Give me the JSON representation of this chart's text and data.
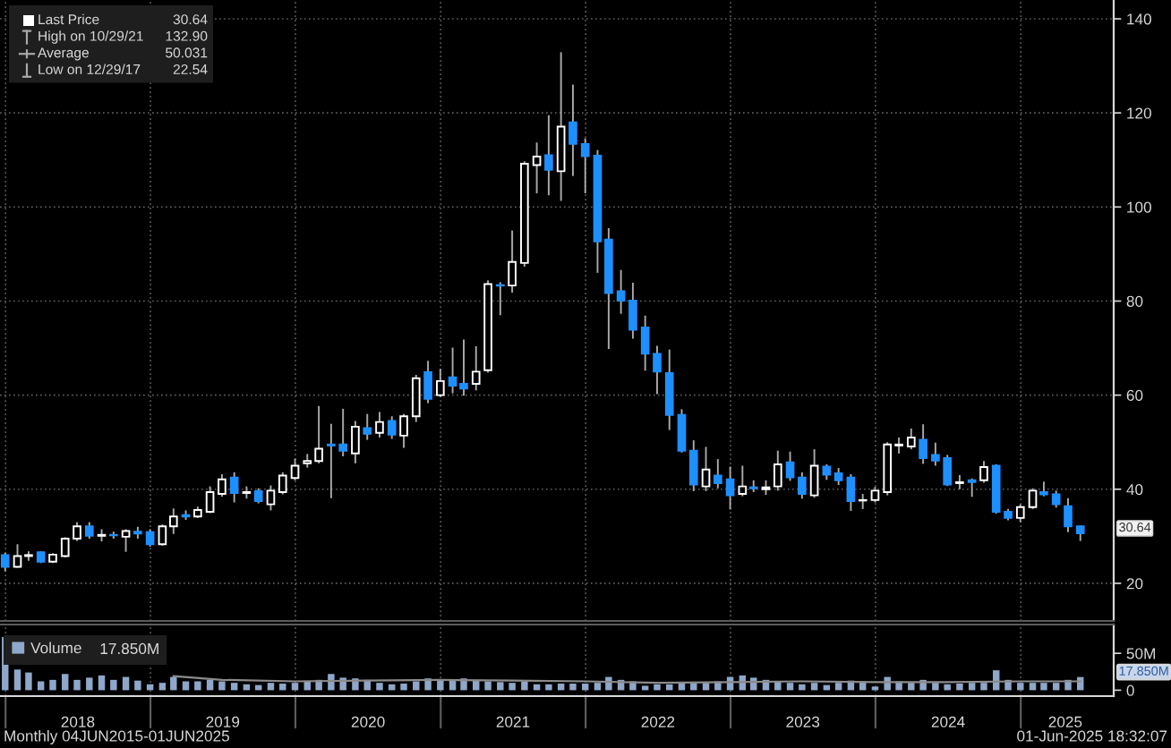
{
  "chart_data": [
    {
      "type": "candlestick",
      "x": [
        "2017-12-31",
        "2018-01-31",
        "2018-02-28",
        "2018-03-31",
        "2018-04-30",
        "2018-05-31",
        "2018-06-30",
        "2018-07-31",
        "2018-08-31",
        "2018-09-30",
        "2018-10-31",
        "2018-11-30",
        "2018-12-31",
        "2019-01-31",
        "2019-02-28",
        "2019-03-31",
        "2019-04-30",
        "2019-05-31",
        "2019-06-30",
        "2019-07-31",
        "2019-08-31",
        "2019-09-30",
        "2019-10-31",
        "2019-11-30",
        "2019-12-31",
        "2020-01-31",
        "2020-02-29",
        "2020-03-31",
        "2020-04-30",
        "2020-05-31",
        "2020-06-30",
        "2020-07-31",
        "2020-08-31",
        "2020-09-30",
        "2020-10-31",
        "2020-11-30",
        "2020-12-31",
        "2021-01-31",
        "2021-02-28",
        "2021-03-31",
        "2021-04-30",
        "2021-05-31",
        "2021-06-30",
        "2021-07-31",
        "2021-08-31",
        "2021-09-30",
        "2021-10-31",
        "2021-11-30",
        "2021-12-31",
        "2022-01-31",
        "2022-02-28",
        "2022-03-31",
        "2022-04-30",
        "2022-05-31",
        "2022-06-30",
        "2022-07-31",
        "2022-08-31",
        "2022-09-30",
        "2022-10-31",
        "2022-11-30",
        "2022-12-31",
        "2023-01-31",
        "2023-02-28",
        "2023-03-31",
        "2023-04-30",
        "2023-05-31",
        "2023-06-30",
        "2023-07-31",
        "2023-08-31",
        "2023-09-30",
        "2023-10-31",
        "2023-11-30",
        "2023-12-31",
        "2024-01-31",
        "2024-02-29",
        "2024-03-31",
        "2024-04-30",
        "2024-05-31",
        "2024-06-30",
        "2024-07-31",
        "2024-08-31",
        "2024-09-30",
        "2024-10-31",
        "2024-11-30",
        "2024-12-31",
        "2025-01-31",
        "2025-02-28",
        "2025-03-31",
        "2025-04-30",
        "2025-05-31"
      ],
      "ohlc": [
        [
          26.0,
          26.5,
          22.54,
          23.5
        ],
        [
          23.5,
          28.3,
          23.3,
          25.8
        ],
        [
          25.8,
          26.8,
          24.8,
          26.0
        ],
        [
          26.6,
          26.8,
          24.3,
          24.6
        ],
        [
          24.6,
          26.4,
          24.3,
          26.1
        ],
        [
          25.8,
          29.8,
          25.5,
          29.5
        ],
        [
          29.5,
          33.0,
          29.0,
          32.1
        ],
        [
          32.1,
          33.0,
          29.5,
          30.1
        ],
        [
          30.1,
          31.5,
          28.9,
          30.3
        ],
        [
          30.3,
          31.0,
          29.5,
          30.2
        ],
        [
          29.9,
          31.5,
          26.7,
          31.1
        ],
        [
          31.0,
          32.0,
          29.5,
          30.6
        ],
        [
          30.9,
          31.5,
          27.8,
          28.3
        ],
        [
          28.3,
          32.5,
          28.0,
          32.1
        ],
        [
          32.1,
          35.9,
          30.5,
          34.2
        ],
        [
          34.5,
          35.5,
          33.5,
          34.2
        ],
        [
          34.2,
          36.3,
          33.9,
          35.6
        ],
        [
          35.2,
          40.6,
          34.9,
          39.4
        ],
        [
          39.0,
          43.2,
          38.4,
          42.1
        ],
        [
          42.5,
          43.6,
          37.2,
          39.2
        ],
        [
          39.2,
          40.6,
          38.0,
          39.4
        ],
        [
          39.6,
          40.2,
          37.0,
          37.5
        ],
        [
          36.8,
          40.8,
          35.5,
          39.7
        ],
        [
          39.4,
          43.6,
          38.9,
          42.9
        ],
        [
          42.4,
          46.5,
          41.9,
          45.0
        ],
        [
          45.5,
          47.5,
          44.6,
          46.0
        ],
        [
          46.0,
          57.7,
          45.5,
          48.6
        ],
        [
          49.5,
          53.9,
          38.1,
          49.3
        ],
        [
          49.5,
          57.1,
          47.0,
          48.2
        ],
        [
          47.6,
          54.5,
          45.5,
          53.3
        ],
        [
          53.0,
          56.0,
          50.5,
          51.8
        ],
        [
          52.0,
          56.4,
          51.0,
          54.3
        ],
        [
          54.5,
          55.5,
          50.7,
          51.6
        ],
        [
          51.4,
          56.0,
          48.8,
          55.5
        ],
        [
          55.5,
          64.3,
          54.3,
          63.6
        ],
        [
          64.9,
          67.3,
          58.3,
          59.2
        ],
        [
          60.0,
          65.6,
          59.6,
          63.0
        ],
        [
          63.8,
          70.1,
          60.4,
          62.0
        ],
        [
          62.4,
          71.8,
          59.9,
          61.4
        ],
        [
          62.4,
          70.4,
          61.0,
          65.0
        ],
        [
          65.3,
          84.4,
          64.8,
          83.6
        ],
        [
          83.4,
          84.0,
          77.0,
          83.3
        ],
        [
          83.3,
          95.0,
          81.8,
          88.3
        ],
        [
          88.1,
          109.7,
          87.3,
          109.2
        ],
        [
          108.9,
          113.7,
          102.9,
          110.7
        ],
        [
          111.0,
          119.5,
          102.5,
          107.9
        ],
        [
          107.6,
          132.9,
          101.3,
          117.1
        ],
        [
          118.0,
          126.0,
          106.6,
          113.4
        ],
        [
          113.4,
          114.6,
          102.9,
          110.8
        ],
        [
          110.9,
          112.1,
          86.0,
          92.7
        ],
        [
          93.1,
          95.5,
          69.8,
          81.7
        ],
        [
          82.1,
          86.6,
          77.3,
          80.1
        ],
        [
          80.1,
          83.9,
          72.0,
          73.9
        ],
        [
          74.4,
          76.9,
          65.2,
          68.8
        ],
        [
          68.8,
          70.5,
          60.2,
          65.0
        ],
        [
          64.7,
          69.7,
          52.6,
          55.8
        ],
        [
          55.8,
          57.0,
          47.8,
          48.2
        ],
        [
          48.2,
          50.4,
          39.6,
          41.0
        ],
        [
          40.6,
          49.0,
          39.6,
          44.2
        ],
        [
          42.9,
          46.4,
          40.2,
          41.3
        ],
        [
          42.1,
          44.8,
          35.7,
          38.7
        ],
        [
          39.0,
          45.0,
          38.5,
          40.6
        ],
        [
          40.4,
          41.9,
          39.4,
          40.2
        ],
        [
          40.0,
          41.9,
          38.8,
          40.4
        ],
        [
          40.6,
          48.2,
          39.7,
          45.3
        ],
        [
          45.7,
          48.0,
          41.8,
          42.5
        ],
        [
          42.5,
          43.6,
          38.0,
          39.0
        ],
        [
          38.7,
          48.5,
          38.2,
          45.0
        ],
        [
          44.8,
          45.3,
          42.0,
          43.1
        ],
        [
          43.4,
          44.5,
          40.9,
          41.9
        ],
        [
          42.5,
          43.2,
          35.4,
          37.5
        ],
        [
          37.6,
          39.0,
          35.8,
          37.7
        ],
        [
          37.7,
          40.5,
          37.2,
          39.7
        ],
        [
          39.4,
          50.0,
          38.7,
          49.5
        ],
        [
          49.3,
          51.0,
          47.6,
          49.5
        ],
        [
          49.1,
          52.9,
          48.5,
          51.0
        ],
        [
          50.5,
          53.8,
          45.4,
          46.6
        ],
        [
          47.3,
          49.9,
          45.0,
          46.1
        ],
        [
          46.6,
          47.3,
          40.7,
          41.0
        ],
        [
          41.3,
          43.0,
          40.0,
          41.5
        ],
        [
          41.9,
          42.3,
          38.4,
          41.5
        ],
        [
          41.9,
          46.0,
          41.4,
          44.7
        ],
        [
          45.0,
          45.3,
          34.8,
          35.2
        ],
        [
          35.2,
          35.8,
          33.4,
          33.9
        ],
        [
          33.9,
          36.8,
          33.0,
          36.2
        ],
        [
          36.2,
          40.2,
          35.8,
          39.7
        ],
        [
          39.4,
          41.6,
          38.5,
          38.9
        ],
        [
          38.9,
          39.7,
          36.1,
          36.8
        ],
        [
          36.4,
          38.1,
          30.9,
          32.1
        ],
        [
          32.1,
          32.3,
          29.0,
          30.64
        ]
      ],
      "colors": [
        "#1e8fff",
        "#ffffff",
        "#ffffff",
        "#1e8fff",
        "#ffffff",
        "#ffffff",
        "#ffffff",
        "#1e8fff",
        "#ffffff",
        "#1e8fff",
        "#ffffff",
        "#1e8fff",
        "#1e8fff",
        "#ffffff",
        "#ffffff",
        "#1e8fff",
        "#ffffff",
        "#ffffff",
        "#ffffff",
        "#1e8fff",
        "#ffffff",
        "#1e8fff",
        "#ffffff",
        "#ffffff",
        "#ffffff",
        "#ffffff",
        "#ffffff",
        "#1e8fff",
        "#1e8fff",
        "#ffffff",
        "#1e8fff",
        "#ffffff",
        "#1e8fff",
        "#ffffff",
        "#ffffff",
        "#1e8fff",
        "#ffffff",
        "#1e8fff",
        "#1e8fff",
        "#ffffff",
        "#ffffff",
        "#1e8fff",
        "#ffffff",
        "#ffffff",
        "#ffffff",
        "#1e8fff",
        "#ffffff",
        "#1e8fff",
        "#1e8fff",
        "#1e8fff",
        "#1e8fff",
        "#1e8fff",
        "#1e8fff",
        "#1e8fff",
        "#1e8fff",
        "#1e8fff",
        "#1e8fff",
        "#1e8fff",
        "#ffffff",
        "#1e8fff",
        "#1e8fff",
        "#ffffff",
        "#1e8fff",
        "#ffffff",
        "#ffffff",
        "#1e8fff",
        "#1e8fff",
        "#ffffff",
        "#1e8fff",
        "#1e8fff",
        "#1e8fff",
        "#ffffff",
        "#ffffff",
        "#ffffff",
        "#ffffff",
        "#ffffff",
        "#1e8fff",
        "#1e8fff",
        "#1e8fff",
        "#ffffff",
        "#1e8fff",
        "#ffffff",
        "#1e8fff",
        "#1e8fff",
        "#ffffff",
        "#ffffff",
        "#1e8fff",
        "#1e8fff",
        "#1e8fff",
        "#1e8fff"
      ],
      "xlim": [
        "2017-12-18",
        "2025-08-23"
      ],
      "xticks": [
        {
          "value": "2018-01-01",
          "label": null
        },
        {
          "value": "2019-01-01",
          "label": null
        },
        {
          "value": "2020-01-01",
          "label": null
        },
        {
          "value": "2021-01-01",
          "label": null
        },
        {
          "value": "2022-01-01",
          "label": null
        },
        {
          "value": "2023-01-01",
          "label": null
        },
        {
          "value": "2024-01-01",
          "label": null
        },
        {
          "value": "2025-01-01",
          "label": null
        }
      ],
      "ylim": [
        12,
        144
      ],
      "yticks": [
        20,
        40,
        60,
        80,
        100,
        120,
        140
      ],
      "grid": true,
      "tick_labels": "y",
      "annotations": [
        "Last Price",
        "30.64",
        "High on 10/29/21",
        "132.90",
        "Average",
        "50.031",
        "Low on 12/29/17",
        "22.54",
        "30.64"
      ]
    },
    {
      "type": "bar",
      "x": [
        "2017-12-31",
        "2018-01-31",
        "2018-02-28",
        "2018-03-31",
        "2018-04-30",
        "2018-05-31",
        "2018-06-30",
        "2018-07-31",
        "2018-08-31",
        "2018-09-30",
        "2018-10-31",
        "2018-11-30",
        "2018-12-31",
        "2019-01-31",
        "2019-02-28",
        "2019-03-31",
        "2019-04-30",
        "2019-05-31",
        "2019-06-30",
        "2019-07-31",
        "2019-08-31",
        "2019-09-30",
        "2019-10-31",
        "2019-11-30",
        "2019-12-31",
        "2020-01-31",
        "2020-02-29",
        "2020-03-31",
        "2020-04-30",
        "2020-05-31",
        "2020-06-30",
        "2020-07-31",
        "2020-08-31",
        "2020-09-30",
        "2020-10-31",
        "2020-11-30",
        "2020-12-31",
        "2021-01-31",
        "2021-02-28",
        "2021-03-31",
        "2021-04-30",
        "2021-05-31",
        "2021-06-30",
        "2021-07-31",
        "2021-08-31",
        "2021-09-30",
        "2021-10-31",
        "2021-11-30",
        "2021-12-31",
        "2022-01-31",
        "2022-02-28",
        "2022-03-31",
        "2022-04-30",
        "2022-05-31",
        "2022-06-30",
        "2022-07-31",
        "2022-08-31",
        "2022-09-30",
        "2022-10-31",
        "2022-11-30",
        "2022-12-31",
        "2023-01-31",
        "2023-02-28",
        "2023-03-31",
        "2023-04-30",
        "2023-05-31",
        "2023-06-30",
        "2023-07-31",
        "2023-08-31",
        "2023-09-30",
        "2023-10-31",
        "2023-11-30",
        "2023-12-31",
        "2024-01-31",
        "2024-02-29",
        "2024-03-31",
        "2024-04-30",
        "2024-05-31",
        "2024-06-30",
        "2024-07-31",
        "2024-08-31",
        "2024-09-30",
        "2024-10-31",
        "2024-11-30",
        "2024-12-31",
        "2025-01-31",
        "2025-02-28",
        "2025-03-31",
        "2025-04-30",
        "2025-05-31"
      ],
      "series": [
        {
          "name": "Volume",
          "color": "#8fa7c9",
          "values": [
            72,
            28,
            24,
            12,
            14,
            22,
            14,
            17,
            20,
            14,
            18,
            13,
            8,
            10,
            18,
            12,
            12,
            14,
            12,
            10,
            8,
            7,
            10,
            9,
            10,
            12,
            14,
            22,
            17,
            16,
            14,
            10,
            8,
            9,
            12,
            16,
            14,
            14,
            16,
            14,
            12,
            11,
            10,
            12,
            8,
            8,
            9,
            9,
            9,
            10,
            18,
            14,
            12,
            6,
            8,
            8,
            9,
            10,
            10,
            12,
            18,
            20,
            17,
            14,
            12,
            10,
            8,
            10,
            7,
            10,
            13,
            12,
            5,
            18,
            12,
            10,
            14,
            10,
            8,
            9,
            10,
            10,
            27,
            14,
            10,
            10,
            10,
            10,
            14,
            17.85
          ]
        },
        {
          "type": "line",
          "color": "#8a8a8a",
          "x": [
            "2019-02-28",
            "2019-06-30",
            "2019-12-31",
            "2020-06-30",
            "2020-12-31",
            "2021-06-30",
            "2021-12-31",
            "2022-06-30",
            "2022-12-31",
            "2023-06-30",
            "2023-12-31",
            "2024-06-30",
            "2024-12-31",
            "2025-05-31"
          ],
          "values": [
            19,
            14,
            12,
            13,
            14,
            13,
            12,
            10,
            11,
            12,
            11,
            11,
            12,
            12
          ]
        }
      ],
      "xlim": [
        "2017-12-18",
        "2025-08-23"
      ],
      "xticks": [
        {
          "value": "2018-01-01",
          "label": null
        },
        {
          "value": "2019-01-01",
          "label": null
        },
        {
          "value": "2020-01-01",
          "label": null
        },
        {
          "value": "2021-01-01",
          "label": null
        },
        {
          "value": "2022-01-01",
          "label": null
        },
        {
          "value": "2023-01-01",
          "label": null
        },
        {
          "value": "2024-01-01",
          "label": null
        },
        {
          "value": "2025-01-01",
          "label": null
        },
        {
          "value": "2018-07-02",
          "label": "2018"
        },
        {
          "value": "2019-07-02",
          "label": "2019"
        },
        {
          "value": "2020-07-02",
          "label": "2020"
        },
        {
          "value": "2021-07-02",
          "label": "2021"
        },
        {
          "value": "2022-07-02",
          "label": "2022"
        },
        {
          "value": "2023-07-02",
          "label": "2023"
        },
        {
          "value": "2024-07-02",
          "label": "2024"
        },
        {
          "value": "2025-04-23",
          "label": "2025"
        }
      ],
      "ylim": [
        -8,
        89
      ],
      "yticks": [
        0,
        {
          "value": 50,
          "label": "50M"
        }
      ],
      "grid": "x",
      "legend": "top left",
      "annotations": [
        "17.850M",
        "17.850M",
        "Monthly 04JUN2015-01JUN2025",
        "01-Jun-2025 18:32:07"
      ]
    }
  ]
}
